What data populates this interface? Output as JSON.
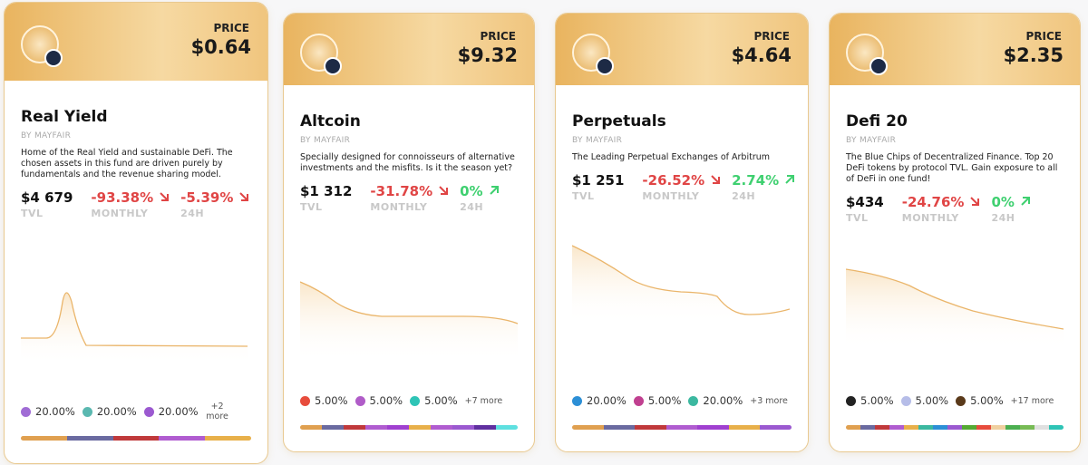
{
  "cards": [
    {
      "price_label": "PRICE",
      "price": "$0.64",
      "name": "Real Yield",
      "by": "BY MAYFAIR",
      "description": "Home of the Real Yield and sustainable DeFi. The chosen assets in this fund are driven purely by fundamentals and the revenue sharing model.",
      "stats": [
        {
          "value": "$4 679",
          "label": "TVL"
        },
        {
          "value": "-93.38%",
          "label": "MONTHLY"
        },
        {
          "value": "-5.39%",
          "label": "24H"
        }
      ],
      "assets": [
        "20.00%",
        "20.00%",
        "20.00%"
      ],
      "more": "+2 more"
    },
    {
      "price_label": "PRICE",
      "price": "$9.32",
      "name": "Altcoin",
      "by": "BY MAYFAIR",
      "description": "Specially designed for connoisseurs of alternative investments and the misfits. Is it the season yet?",
      "stats": [
        {
          "value": "$1 312",
          "label": "TVL"
        },
        {
          "value": "-31.78%",
          "label": "MONTHLY"
        },
        {
          "value": "0%",
          "label": "24H"
        }
      ],
      "assets": [
        "5.00%",
        "5.00%",
        "5.00%"
      ],
      "more": "+7 more"
    },
    {
      "price_label": "PRICE",
      "price": "$4.64",
      "name": "Perpetuals",
      "by": "BY MAYFAIR",
      "description": "The Leading Perpetual Exchanges of Arbitrum",
      "stats": [
        {
          "value": "$1 251",
          "label": "TVL"
        },
        {
          "value": "-26.52%",
          "label": "MONTHLY"
        },
        {
          "value": "2.74%",
          "label": "24H"
        }
      ],
      "assets": [
        "20.00%",
        "5.00%",
        "20.00%"
      ],
      "more": "+3 more"
    },
    {
      "price_label": "PRICE",
      "price": "$2.35",
      "name": "Defi 20",
      "by": "BY MAYFAIR",
      "description": "The Blue Chips of Decentralized Finance. Top 20 DeFi tokens by protocol TVL. Gain exposure to all of DeFi in one fund!",
      "stats": [
        {
          "value": "$434",
          "label": "TVL"
        },
        {
          "value": "-24.76%",
          "label": "MONTHLY"
        },
        {
          "value": "0%",
          "label": "24H"
        }
      ],
      "assets": [
        "5.00%",
        "5.00%",
        "5.00%"
      ],
      "more": "+17 more"
    }
  ]
}
